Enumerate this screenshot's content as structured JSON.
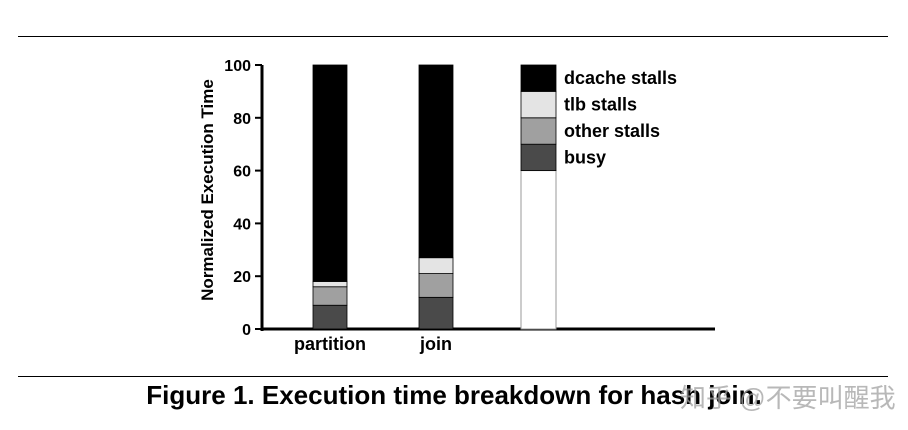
{
  "caption": "Figure 1. Execution time breakdown for hash join.",
  "watermark": "知乎 @不要叫醒我",
  "chart_data": {
    "type": "bar",
    "stacked": true,
    "ylabel": "Normalized Execution Time",
    "ylim": [
      0,
      100
    ],
    "yticks": [
      0,
      20,
      40,
      60,
      80,
      100
    ],
    "categories": [
      "partition",
      "join"
    ],
    "series": [
      {
        "name": "busy",
        "values": [
          9,
          12
        ],
        "color": "#4a4a4a"
      },
      {
        "name": "other stalls",
        "values": [
          7,
          9
        ],
        "color": "#a0a0a0"
      },
      {
        "name": "tlb stalls",
        "values": [
          2,
          6
        ],
        "color": "#e4e4e4"
      },
      {
        "name": "dcache stalls",
        "values": [
          82,
          73
        ],
        "color": "#000000"
      }
    ],
    "legend_position": "right"
  }
}
